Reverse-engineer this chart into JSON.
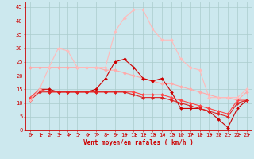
{
  "xlabel": "Vent moyen/en rafales ( km/h )",
  "background_color": "#cce8ee",
  "grid_color": "#aacccc",
  "x": [
    0,
    1,
    2,
    3,
    4,
    5,
    6,
    7,
    8,
    9,
    10,
    11,
    12,
    13,
    14,
    15,
    16,
    17,
    18,
    19,
    20,
    21,
    22,
    23
  ],
  "series": [
    {
      "y": [
        23,
        23,
        23,
        23,
        23,
        23,
        23,
        23,
        22,
        22,
        21,
        20,
        19,
        18,
        17,
        17,
        16,
        15,
        14,
        13,
        12,
        12,
        11,
        14
      ],
      "color": "#ffaaaa",
      "marker": "D",
      "markersize": 2,
      "linewidth": 0.8
    },
    {
      "y": [
        11,
        15,
        15,
        14,
        14,
        14,
        14,
        15,
        19,
        25,
        26,
        23,
        19,
        18,
        19,
        14,
        8,
        8,
        8,
        7,
        4,
        1,
        8,
        11
      ],
      "color": "#cc0000",
      "marker": "D",
      "markersize": 2,
      "linewidth": 0.8
    },
    {
      "y": [
        12,
        15,
        14,
        14,
        14,
        14,
        14,
        14,
        14,
        14,
        14,
        14,
        13,
        13,
        13,
        12,
        11,
        10,
        9,
        8,
        7,
        6,
        11,
        11
      ],
      "color": "#ff4444",
      "marker": "D",
      "markersize": 2,
      "linewidth": 0.8
    },
    {
      "y": [
        11,
        14,
        14,
        14,
        14,
        14,
        14,
        14,
        14,
        14,
        14,
        13,
        12,
        12,
        12,
        11,
        10,
        9,
        8,
        7,
        6,
        5,
        10,
        11
      ],
      "color": "#dd2222",
      "marker": "D",
      "markersize": 2,
      "linewidth": 0.8
    },
    {
      "y": [
        11,
        15,
        23,
        30,
        29,
        23,
        23,
        23,
        23,
        36,
        41,
        44,
        44,
        37,
        33,
        33,
        26,
        23,
        22,
        12,
        12,
        12,
        12,
        15
      ],
      "color": "#ffbbbb",
      "marker": "D",
      "markersize": 2,
      "linewidth": 0.8
    }
  ],
  "ylim": [
    0,
    47
  ],
  "xlim": [
    -0.5,
    23.5
  ],
  "yticks": [
    0,
    5,
    10,
    15,
    20,
    25,
    30,
    35,
    40,
    45
  ],
  "xticks": [
    0,
    1,
    2,
    3,
    4,
    5,
    6,
    7,
    8,
    9,
    10,
    11,
    12,
    13,
    14,
    15,
    16,
    17,
    18,
    19,
    20,
    21,
    22,
    23
  ],
  "arrow_color": "#cc0000",
  "spine_color": "#cc0000",
  "tick_color": "#cc0000",
  "label_fontsize": 5,
  "xlabel_fontsize": 5.5
}
